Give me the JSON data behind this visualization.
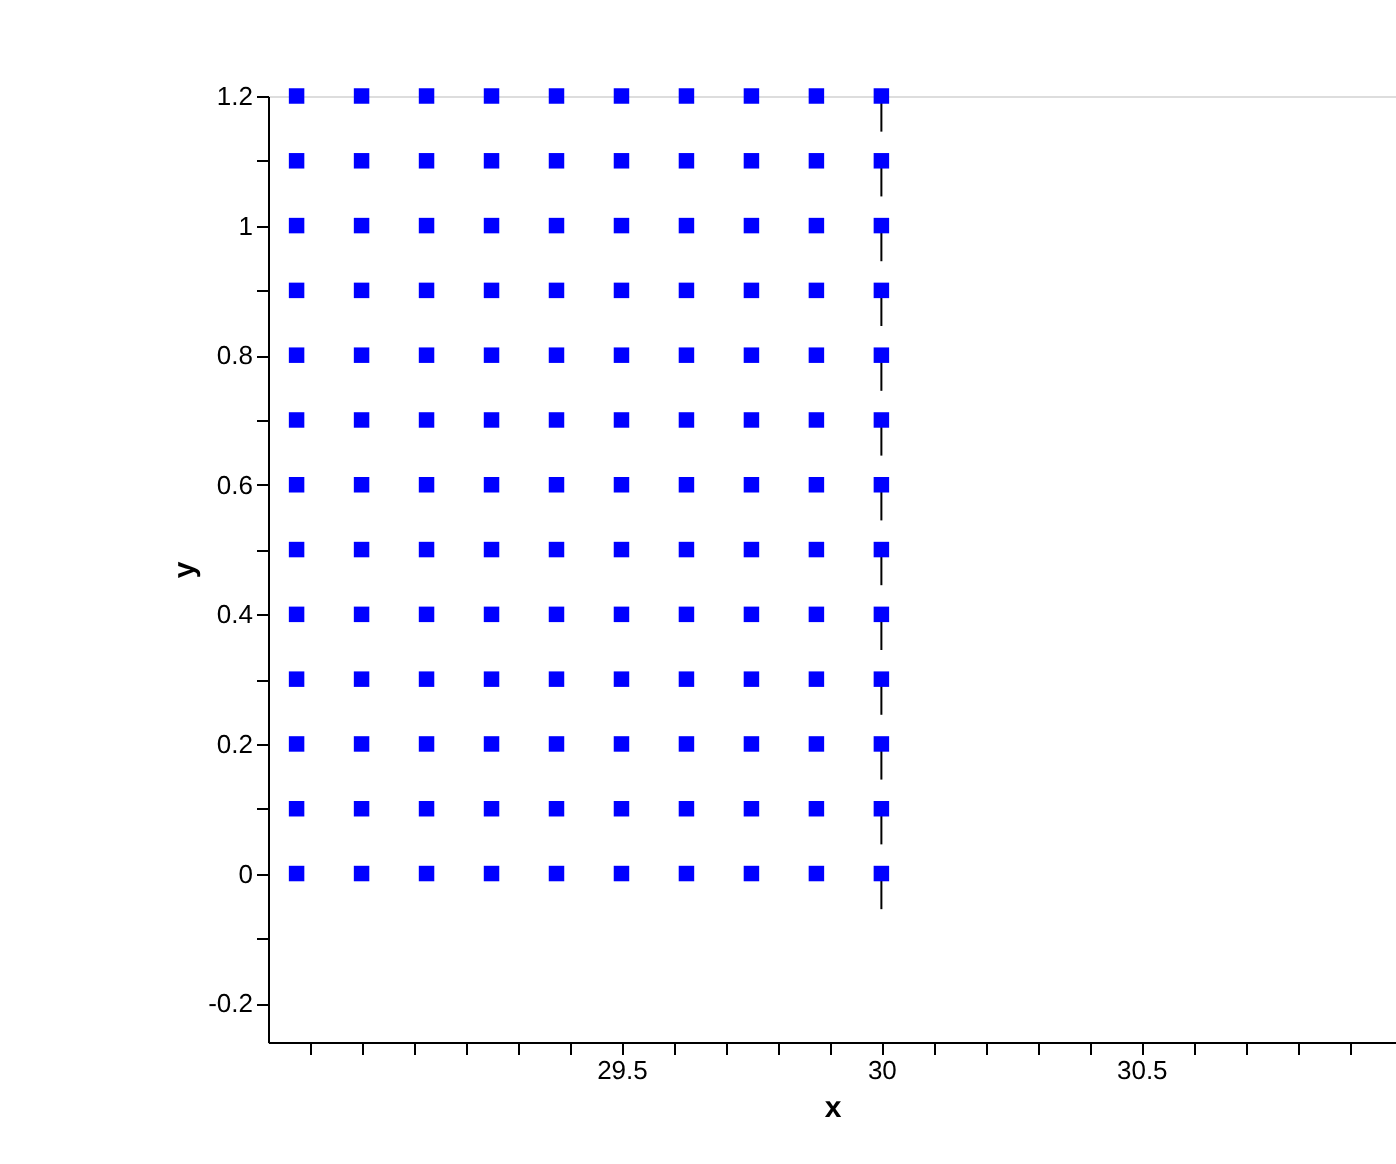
{
  "chart_data": {
    "type": "scatter",
    "xlabel": "x",
    "ylabel": "y",
    "xlim": [
      28.82,
      30.99
    ],
    "ylim": [
      -0.26,
      1.2
    ],
    "xticks": [
      {
        "value": 28.9,
        "label": null
      },
      {
        "value": 29.0,
        "label": null
      },
      {
        "value": 29.1,
        "label": null
      },
      {
        "value": 29.2,
        "label": null
      },
      {
        "value": 29.3,
        "label": null
      },
      {
        "value": 29.4,
        "label": null
      },
      29.5,
      {
        "value": 29.6,
        "label": null
      },
      {
        "value": 29.7,
        "label": null
      },
      {
        "value": 29.8,
        "label": null
      },
      {
        "value": 29.9,
        "label": null
      },
      30,
      {
        "value": 30.1,
        "label": null
      },
      {
        "value": 30.2,
        "label": null
      },
      {
        "value": 30.3,
        "label": null
      },
      {
        "value": 30.4,
        "label": null
      },
      30.5,
      {
        "value": 30.6,
        "label": null
      },
      {
        "value": 30.7,
        "label": null
      },
      {
        "value": 30.8,
        "label": null
      },
      {
        "value": 30.9,
        "label": null
      }
    ],
    "yticks": [
      -0.2,
      {
        "value": -0.1,
        "label": null
      },
      0,
      {
        "value": 0.1,
        "label": null
      },
      0.2,
      {
        "value": 0.3,
        "label": null
      },
      0.4,
      {
        "value": 0.5,
        "label": null
      },
      0.6,
      {
        "value": 0.7,
        "label": null
      },
      0.8,
      {
        "value": 0.9,
        "label": null
      },
      1,
      {
        "value": 1.1,
        "label": null
      },
      1.2
    ],
    "grid": false,
    "series": [
      {
        "color": "#0000ff",
        "marker": "square",
        "x": [
          28.875,
          28.875,
          28.875,
          28.875,
          28.875,
          28.875,
          28.875,
          28.875,
          28.875,
          28.875,
          28.875,
          28.875,
          28.875,
          29,
          29,
          29,
          29,
          29,
          29,
          29,
          29,
          29,
          29,
          29,
          29,
          29,
          29.125,
          29.125,
          29.125,
          29.125,
          29.125,
          29.125,
          29.125,
          29.125,
          29.125,
          29.125,
          29.125,
          29.125,
          29.125,
          29.25,
          29.25,
          29.25,
          29.25,
          29.25,
          29.25,
          29.25,
          29.25,
          29.25,
          29.25,
          29.25,
          29.25,
          29.25,
          29.375,
          29.375,
          29.375,
          29.375,
          29.375,
          29.375,
          29.375,
          29.375,
          29.375,
          29.375,
          29.375,
          29.375,
          29.375,
          29.5,
          29.5,
          29.5,
          29.5,
          29.5,
          29.5,
          29.5,
          29.5,
          29.5,
          29.5,
          29.5,
          29.5,
          29.5,
          29.625,
          29.625,
          29.625,
          29.625,
          29.625,
          29.625,
          29.625,
          29.625,
          29.625,
          29.625,
          29.625,
          29.625,
          29.625,
          29.75,
          29.75,
          29.75,
          29.75,
          29.75,
          29.75,
          29.75,
          29.75,
          29.75,
          29.75,
          29.75,
          29.75,
          29.75,
          29.875,
          29.875,
          29.875,
          29.875,
          29.875,
          29.875,
          29.875,
          29.875,
          29.875,
          29.875,
          29.875,
          29.875,
          29.875,
          30,
          30,
          30,
          30,
          30,
          30,
          30,
          30,
          30,
          30,
          30,
          30,
          30
        ],
        "values": [
          0,
          0.1,
          0.2,
          0.3,
          0.4,
          0.5,
          0.6,
          0.7,
          0.8,
          0.9,
          1,
          1.1,
          1.2,
          0,
          0.1,
          0.2,
          0.3,
          0.4,
          0.5,
          0.6,
          0.7,
          0.8,
          0.9,
          1,
          1.1,
          1.2,
          0,
          0.1,
          0.2,
          0.3,
          0.4,
          0.5,
          0.6,
          0.7,
          0.8,
          0.9,
          1,
          1.1,
          1.2,
          0,
          0.1,
          0.2,
          0.3,
          0.4,
          0.5,
          0.6,
          0.7,
          0.8,
          0.9,
          1,
          1.1,
          1.2,
          0,
          0.1,
          0.2,
          0.3,
          0.4,
          0.5,
          0.6,
          0.7,
          0.8,
          0.9,
          1,
          1.1,
          1.2,
          0,
          0.1,
          0.2,
          0.3,
          0.4,
          0.5,
          0.6,
          0.7,
          0.8,
          0.9,
          1,
          1.1,
          1.2,
          0,
          0.1,
          0.2,
          0.3,
          0.4,
          0.5,
          0.6,
          0.7,
          0.8,
          0.9,
          1,
          1.1,
          1.2,
          0,
          0.1,
          0.2,
          0.3,
          0.4,
          0.5,
          0.6,
          0.7,
          0.8,
          0.9,
          1,
          1.1,
          1.2,
          0,
          0.1,
          0.2,
          0.3,
          0.4,
          0.5,
          0.6,
          0.7,
          0.8,
          0.9,
          1,
          1.1,
          1.2,
          0,
          0.1,
          0.2,
          0.3,
          0.4,
          0.5,
          0.6,
          0.7,
          0.8,
          0.9,
          1,
          1.1,
          1.2
        ],
        "errors": [
          null,
          null,
          null,
          null,
          null,
          null,
          null,
          null,
          null,
          null,
          null,
          null,
          null,
          null,
          null,
          null,
          null,
          null,
          null,
          null,
          null,
          null,
          null,
          null,
          null,
          null,
          null,
          null,
          null,
          null,
          null,
          null,
          null,
          null,
          null,
          null,
          null,
          null,
          null,
          null,
          null,
          null,
          null,
          null,
          null,
          null,
          null,
          null,
          null,
          null,
          null,
          null,
          null,
          null,
          null,
          null,
          null,
          null,
          null,
          null,
          null,
          null,
          null,
          null,
          null,
          null,
          null,
          null,
          null,
          null,
          null,
          null,
          null,
          null,
          null,
          null,
          null,
          null,
          null,
          null,
          null,
          null,
          null,
          null,
          null,
          null,
          null,
          null,
          null,
          null,
          null,
          null,
          null,
          null,
          null,
          null,
          null,
          null,
          null,
          null,
          null,
          null,
          null,
          null,
          null,
          null,
          null,
          null,
          null,
          null,
          null,
          null,
          null,
          null,
          null,
          null,
          null,
          [
            -0.055,
            0
          ],
          [
            0.045,
            0.1
          ],
          [
            0.145,
            0.2
          ],
          [
            0.245,
            0.3
          ],
          [
            0.345,
            0.4
          ],
          [
            0.445,
            0.5
          ],
          [
            0.545,
            0.6
          ],
          [
            0.645,
            0.7
          ],
          [
            0.745,
            0.8
          ],
          [
            0.845,
            0.9
          ],
          [
            0.945,
            1
          ],
          [
            1.045,
            1.1
          ],
          [
            1.145,
            1.2
          ]
        ]
      }
    ]
  }
}
